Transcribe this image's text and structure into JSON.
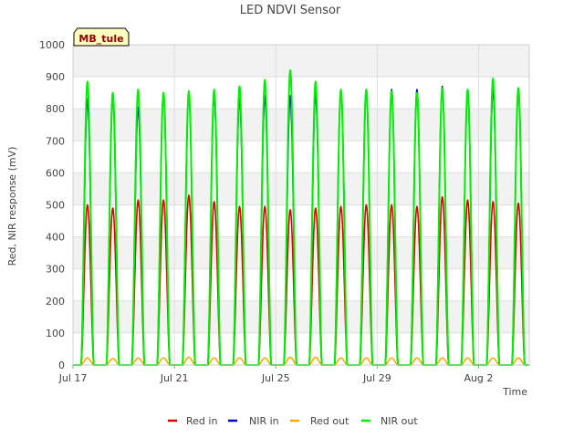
{
  "chart_data": {
    "type": "line",
    "title": "LED NDVI Sensor",
    "badge": "MB_tule",
    "xlabel": "Time",
    "ylabel": "Red, NIR response (mV)",
    "ylim": [
      0,
      1000
    ],
    "yticks": [
      0,
      100,
      200,
      300,
      400,
      500,
      600,
      700,
      800,
      900,
      1000
    ],
    "xlim": [
      "2023-07-17",
      "2023-08-04"
    ],
    "xticks": [
      {
        "date": "2023-07-17",
        "label": "Jul 17"
      },
      {
        "date": "2023-07-21",
        "label": "Jul 21"
      },
      {
        "date": "2023-07-25",
        "label": "Jul 25"
      },
      {
        "date": "2023-07-29",
        "label": "Jul 29"
      },
      {
        "date": "2023-08-02",
        "label": "Aug 2"
      }
    ],
    "grid": "banded",
    "legend_position": "bottom",
    "days": [
      "2023-07-17",
      "2023-07-18",
      "2023-07-19",
      "2023-07-20",
      "2023-07-21",
      "2023-07-22",
      "2023-07-23",
      "2023-07-24",
      "2023-07-25",
      "2023-07-26",
      "2023-07-27",
      "2023-07-28",
      "2023-07-29",
      "2023-07-30",
      "2023-07-31",
      "2023-08-01",
      "2023-08-02",
      "2023-08-03"
    ],
    "series": [
      {
        "name": "Red in",
        "color": "#dd0000",
        "daily_peak": [
          500,
          490,
          515,
          515,
          530,
          510,
          495,
          495,
          485,
          490,
          495,
          500,
          500,
          495,
          525,
          515,
          510,
          505
        ]
      },
      {
        "name": "NIR in",
        "color": "#0000cc",
        "daily_peak": [
          830,
          840,
          805,
          850,
          850,
          840,
          835,
          840,
          840,
          845,
          860,
          860,
          860,
          860,
          870,
          860,
          860,
          860
        ]
      },
      {
        "name": "Red out",
        "color": "#ffaa00",
        "daily_peak": [
          22,
          20,
          22,
          22,
          24,
          22,
          22,
          22,
          24,
          24,
          22,
          22,
          22,
          22,
          22,
          22,
          22,
          22
        ]
      },
      {
        "name": "NIR out",
        "color": "#00ee00",
        "daily_peak": [
          885,
          850,
          860,
          850,
          855,
          860,
          870,
          890,
          920,
          885,
          860,
          860,
          855,
          850,
          865,
          860,
          895,
          865
        ]
      }
    ]
  }
}
